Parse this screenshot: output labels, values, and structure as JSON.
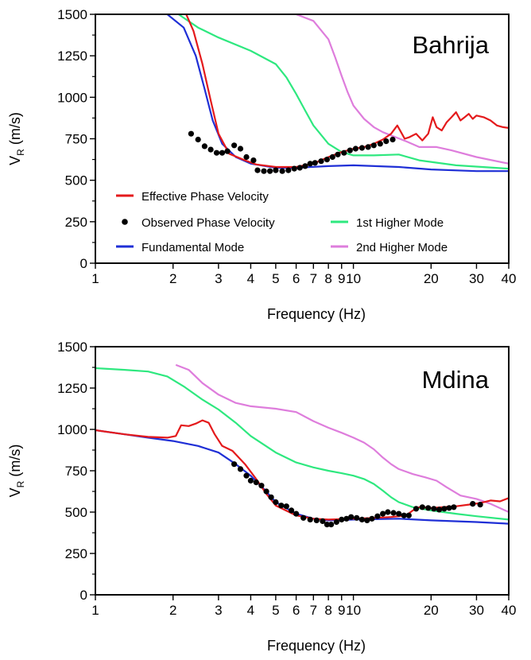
{
  "chart_data": [
    {
      "type": "line",
      "title": "Bahrija",
      "xlabel": "Frequency (Hz)",
      "ylabel_main": "V",
      "ylabel_sub": "R",
      "ylabel_unit": " (m/s)",
      "x_scale": "log",
      "xlim": [
        1,
        40
      ],
      "ylim": [
        0,
        1500
      ],
      "xticks": [
        1,
        2,
        3,
        4,
        5,
        6,
        7,
        8,
        9,
        10,
        20,
        30,
        40
      ],
      "xtick_labels": [
        "1",
        "2",
        "3",
        "4",
        "5",
        "6",
        "7",
        "8",
        "9",
        "10",
        "20",
        "30",
        "40"
      ],
      "yticks": [
        0,
        250,
        500,
        750,
        1000,
        1250,
        1500
      ],
      "ytick_labels": [
        "0",
        "250",
        "500",
        "750",
        "1000",
        "1250",
        "1500"
      ],
      "legend": {
        "placement": "bottom-left",
        "items": [
          {
            "label": "Effective Phase Velocity",
            "color": "#e41a1c",
            "marker": "line"
          },
          {
            "label": "Observed Phase Velocity",
            "color": "#000000",
            "marker": "dot"
          },
          {
            "label": "1st Higher Mode",
            "color": "#2ee87f",
            "marker": "line"
          },
          {
            "label": "Fundamental Mode",
            "color": "#1f2fd6",
            "marker": "line"
          },
          {
            "label": "2nd Higher Mode",
            "color": "#de7ddc",
            "marker": "line"
          }
        ]
      },
      "series": [
        {
          "name": "Fundamental Mode",
          "color": "#1f2fd6",
          "x": [
            1.9,
            2.2,
            2.45,
            2.65,
            2.85,
            3.1,
            3.5,
            4.0,
            5.0,
            6.0,
            8.0,
            10.0,
            15.0,
            20.0,
            30.0,
            40.0
          ],
          "y": [
            1500,
            1420,
            1250,
            1050,
            860,
            720,
            640,
            600,
            575,
            575,
            585,
            590,
            580,
            565,
            555,
            555
          ]
        },
        {
          "name": "1st Higher Mode",
          "color": "#2ee87f",
          "x": [
            2.1,
            2.5,
            3.0,
            4.0,
            5.0,
            5.5,
            6.0,
            6.5,
            7.0,
            8.0,
            9.0,
            10.0,
            12.0,
            15.0,
            18.0,
            25.0,
            40.0
          ],
          "y": [
            1500,
            1420,
            1360,
            1280,
            1200,
            1120,
            1020,
            920,
            830,
            720,
            670,
            650,
            650,
            655,
            620,
            590,
            570
          ]
        },
        {
          "name": "2nd Higher Mode",
          "color": "#de7ddc",
          "x": [
            6.0,
            7.0,
            8.0,
            8.5,
            9.0,
            9.5,
            10.0,
            11.0,
            12.0,
            13.0,
            14.0,
            16.0,
            18.0,
            21.0,
            24.0,
            30.0,
            40.0
          ],
          "y": [
            1500,
            1460,
            1350,
            1240,
            1130,
            1030,
            950,
            870,
            820,
            790,
            770,
            735,
            700,
            700,
            680,
            640,
            600
          ]
        },
        {
          "name": "Effective Phase Velocity",
          "color": "#e41a1c",
          "x": [
            2.25,
            2.4,
            2.6,
            2.8,
            3.0,
            3.3,
            3.8,
            4.2,
            5.0,
            6.0,
            7.0,
            8.0,
            9.0,
            10.0,
            11.0,
            12.0,
            13.0,
            14.0,
            14.8,
            15.3,
            15.8,
            16.5,
            17.5,
            18.5,
            19.5,
            20.3,
            21.0,
            22.0,
            23.0,
            24.0,
            25.0,
            26.0,
            27.0,
            28.0,
            29.0,
            30.0,
            32.0,
            34.0,
            36.0,
            38.0,
            40.0
          ],
          "y": [
            1500,
            1400,
            1200,
            980,
            780,
            660,
            620,
            595,
            580,
            580,
            600,
            640,
            670,
            690,
            700,
            720,
            745,
            780,
            830,
            790,
            750,
            760,
            780,
            740,
            780,
            880,
            820,
            800,
            850,
            880,
            910,
            860,
            880,
            900,
            870,
            890,
            880,
            860,
            830,
            820,
            815
          ]
        }
      ],
      "observed": {
        "name": "Observed Phase Velocity",
        "color": "#000000",
        "x": [
          2.35,
          2.5,
          2.65,
          2.8,
          2.95,
          3.1,
          3.25,
          3.45,
          3.65,
          3.85,
          4.1,
          4.25,
          4.5,
          4.75,
          5.0,
          5.3,
          5.6,
          5.9,
          6.2,
          6.5,
          6.8,
          7.1,
          7.5,
          7.9,
          8.3,
          8.7,
          9.2,
          9.7,
          10.2,
          10.8,
          11.4,
          12.0,
          12.7,
          13.4,
          14.2
        ],
        "y": [
          780,
          745,
          705,
          685,
          665,
          665,
          675,
          710,
          690,
          640,
          620,
          560,
          555,
          555,
          560,
          555,
          560,
          570,
          575,
          585,
          600,
          605,
          615,
          625,
          640,
          655,
          665,
          680,
          690,
          695,
          700,
          710,
          720,
          735,
          745
        ]
      }
    },
    {
      "type": "line",
      "title": "Mdina",
      "xlabel": "Frequency (Hz)",
      "ylabel_main": "V",
      "ylabel_sub": "R",
      "ylabel_unit": " (m/s)",
      "x_scale": "log",
      "xlim": [
        1,
        40
      ],
      "ylim": [
        0,
        1500
      ],
      "xticks": [
        1,
        2,
        3,
        4,
        5,
        6,
        7,
        8,
        9,
        10,
        20,
        30,
        40
      ],
      "xtick_labels": [
        "1",
        "2",
        "3",
        "4",
        "5",
        "6",
        "7",
        "8",
        "9",
        "10",
        "20",
        "30",
        "40"
      ],
      "yticks": [
        0,
        250,
        500,
        750,
        1000,
        1250,
        1500
      ],
      "ytick_labels": [
        "0",
        "250",
        "500",
        "750",
        "1000",
        "1250",
        "1500"
      ],
      "series": [
        {
          "name": "Fundamental Mode",
          "color": "#1f2fd6",
          "x": [
            1.0,
            1.3,
            1.6,
            2.0,
            2.5,
            3.0,
            3.5,
            4.0,
            4.5,
            5.0,
            6.0,
            7.0,
            8.0,
            10.0,
            15.0,
            20.0,
            30.0,
            40.0
          ],
          "y": [
            995,
            970,
            950,
            930,
            900,
            860,
            790,
            720,
            640,
            560,
            490,
            460,
            450,
            455,
            460,
            450,
            440,
            430
          ]
        },
        {
          "name": "1st Higher Mode",
          "color": "#2ee87f",
          "x": [
            1.0,
            1.3,
            1.6,
            1.9,
            2.2,
            2.6,
            3.0,
            3.5,
            4.0,
            5.0,
            6.0,
            7.0,
            8.0,
            9.0,
            10.0,
            11.0,
            12.0,
            13.0,
            14.0,
            15.0,
            17.0,
            20.0,
            25.0,
            30.0,
            40.0
          ],
          "y": [
            1370,
            1360,
            1350,
            1320,
            1260,
            1180,
            1120,
            1040,
            960,
            860,
            800,
            770,
            750,
            735,
            720,
            700,
            670,
            630,
            590,
            560,
            530,
            510,
            490,
            475,
            455
          ]
        },
        {
          "name": "2nd Higher Mode",
          "color": "#de7ddc",
          "x": [
            2.05,
            2.3,
            2.6,
            3.0,
            3.5,
            4.0,
            5.0,
            6.0,
            7.0,
            8.0,
            9.0,
            10.0,
            11.0,
            12.0,
            13.0,
            14.0,
            15.0,
            17.0,
            19.0,
            21.0,
            23.0,
            26.0,
            30.0,
            34.0,
            40.0
          ],
          "y": [
            1390,
            1360,
            1280,
            1210,
            1160,
            1140,
            1125,
            1105,
            1050,
            1010,
            980,
            950,
            920,
            880,
            830,
            790,
            760,
            730,
            710,
            690,
            650,
            600,
            580,
            550,
            500
          ]
        },
        {
          "name": "Effective Phase Velocity",
          "color": "#e41a1c",
          "x": [
            1.0,
            1.3,
            1.6,
            1.9,
            2.05,
            2.15,
            2.3,
            2.45,
            2.6,
            2.75,
            2.9,
            3.1,
            3.4,
            3.8,
            4.2,
            4.6,
            5.0,
            6.0,
            7.0,
            8.0,
            10.0,
            12.0,
            14.0,
            16.0,
            17.0,
            18.0,
            20.0,
            22.0,
            25.0,
            28.0,
            31.0,
            34.0,
            37.0,
            40.0
          ],
          "y": [
            995,
            970,
            955,
            950,
            960,
            1025,
            1020,
            1035,
            1055,
            1040,
            970,
            900,
            870,
            790,
            700,
            610,
            540,
            480,
            460,
            455,
            460,
            465,
            470,
            480,
            510,
            530,
            525,
            530,
            535,
            545,
            555,
            570,
            565,
            585
          ]
        }
      ],
      "observed": {
        "name": "Observed Phase Velocity",
        "color": "#000000",
        "x": [
          3.45,
          3.65,
          3.85,
          4.0,
          4.2,
          4.4,
          4.6,
          4.8,
          5.0,
          5.25,
          5.5,
          5.75,
          6.0,
          6.4,
          6.8,
          7.2,
          7.6,
          7.9,
          8.2,
          8.6,
          9.0,
          9.4,
          9.8,
          10.3,
          10.8,
          11.3,
          11.8,
          12.4,
          13.0,
          13.6,
          14.3,
          15.0,
          15.7,
          16.4,
          17.5,
          18.5,
          19.5,
          20.5,
          21.5,
          22.5,
          23.5,
          24.5,
          29.0,
          31.0
        ],
        "y": [
          790,
          760,
          720,
          690,
          680,
          660,
          625,
          590,
          560,
          540,
          535,
          510,
          490,
          465,
          455,
          450,
          445,
          425,
          425,
          440,
          455,
          460,
          470,
          465,
          455,
          450,
          460,
          475,
          490,
          500,
          495,
          490,
          480,
          480,
          520,
          530,
          525,
          520,
          515,
          520,
          525,
          530,
          550,
          545
        ]
      }
    }
  ]
}
